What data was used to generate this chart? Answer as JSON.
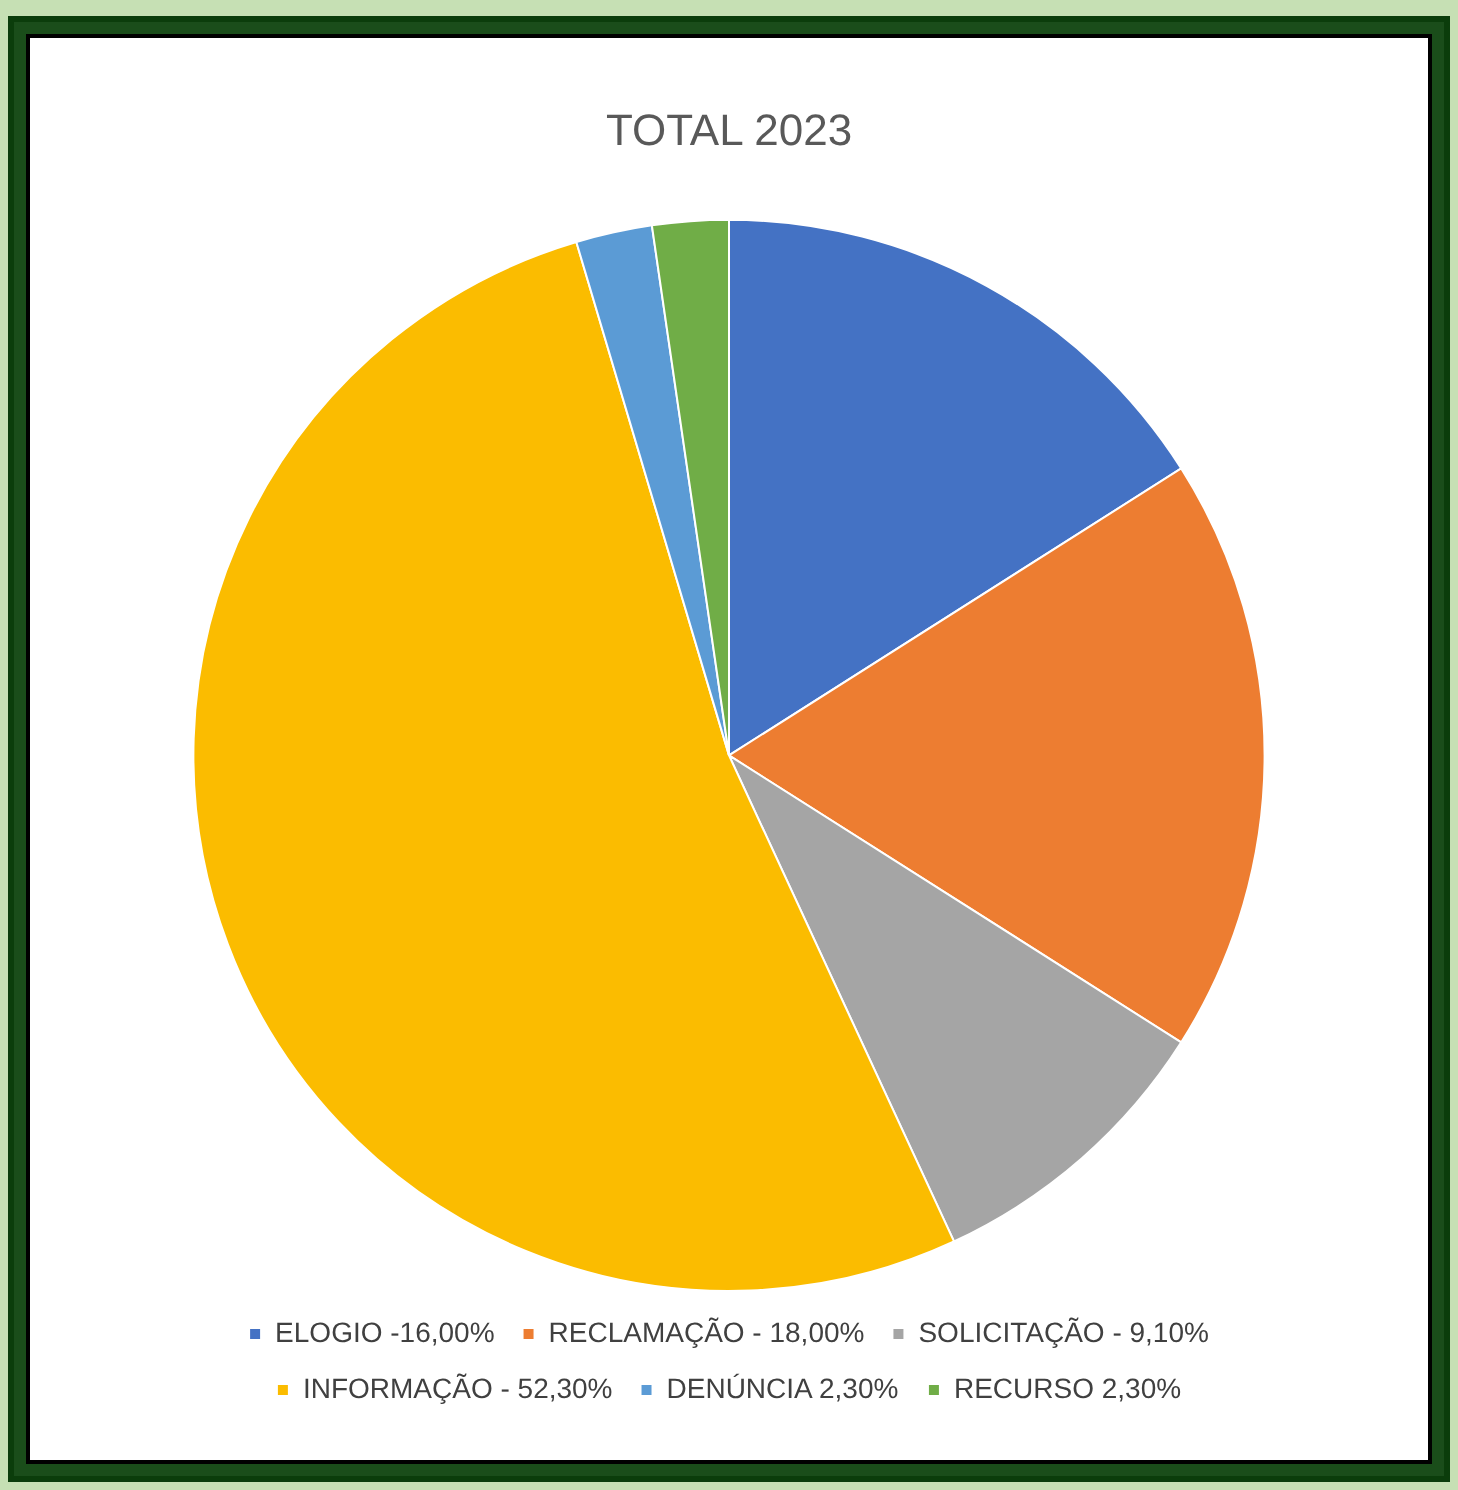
{
  "chart_data": {
    "type": "pie",
    "title": "TOTAL 2023",
    "categories": [
      "ELOGIO -16,00%",
      "RECLAMAÇÃO - 18,00%",
      "SOLICITAÇÃO - 9,10%",
      "INFORMAÇÃO - 52,30%",
      "DENÚNCIA 2,30%",
      "RECURSO 2,30%"
    ],
    "values": [
      16,
      18,
      9.1,
      52.3,
      2.3,
      2.3
    ],
    "colors": [
      "#4472c4",
      "#ed7d31",
      "#a5a5a5",
      "#fbbc00",
      "#5b9bd5",
      "#70ad47"
    ],
    "legend": "bottom"
  }
}
